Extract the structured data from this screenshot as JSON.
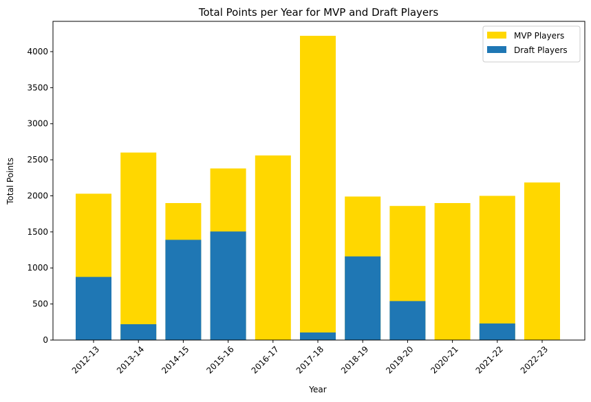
{
  "chart_data": {
    "type": "bar",
    "stacking": "overlaid",
    "title": "Total Points per Year for MVP and Draft Players",
    "xlabel": "Year",
    "ylabel": "Total Points",
    "categories": [
      "2012-13",
      "2013-14",
      "2014-15",
      "2015-16",
      "2016-17",
      "2017-18",
      "2018-19",
      "2019-20",
      "2020-21",
      "2021-22",
      "2022-23"
    ],
    "series": [
      {
        "name": "MVP Players",
        "color": "#FFD700",
        "values": [
          2030,
          2600,
          1900,
          2380,
          2560,
          4220,
          1990,
          1860,
          1900,
          2000,
          2185
        ]
      },
      {
        "name": "Draft Players",
        "color": "#1F77B4",
        "values": [
          875,
          220,
          1390,
          1505,
          0,
          105,
          1160,
          540,
          0,
          230,
          0
        ]
      }
    ],
    "ylim": [
      0,
      4420
    ],
    "yticks": [
      0,
      500,
      1000,
      1500,
      2000,
      2500,
      3000,
      3500,
      4000
    ],
    "grid": false,
    "legend_position": "top-right"
  }
}
